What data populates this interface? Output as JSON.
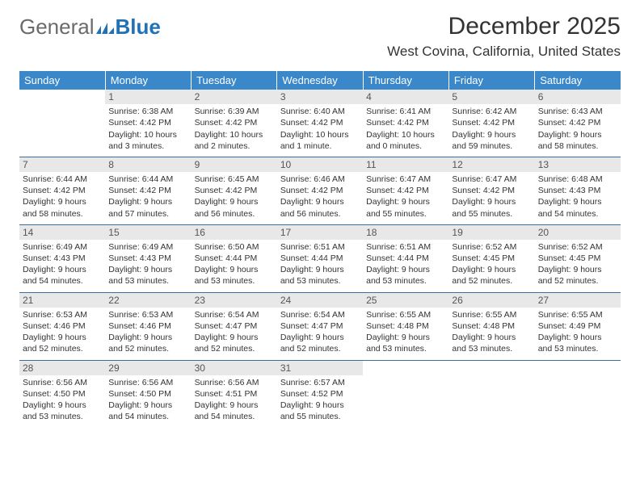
{
  "logo": {
    "part1": "General",
    "part2": "Blue"
  },
  "header": {
    "title": "December 2025",
    "location": "West Covina, California, United States"
  },
  "colors": {
    "header_bg": "#3a87c9",
    "header_text": "#ffffff",
    "row_border": "#3a6f9c",
    "daynum_bg": "#e8e8e8",
    "text": "#333333",
    "logo_gray": "#6a6a6a",
    "logo_blue": "#2071b5"
  },
  "days_of_week": [
    "Sunday",
    "Monday",
    "Tuesday",
    "Wednesday",
    "Thursday",
    "Friday",
    "Saturday"
  ],
  "weeks": [
    [
      null,
      {
        "n": "1",
        "sr": "Sunrise: 6:38 AM",
        "ss": "Sunset: 4:42 PM",
        "dl1": "Daylight: 10 hours",
        "dl2": "and 3 minutes."
      },
      {
        "n": "2",
        "sr": "Sunrise: 6:39 AM",
        "ss": "Sunset: 4:42 PM",
        "dl1": "Daylight: 10 hours",
        "dl2": "and 2 minutes."
      },
      {
        "n": "3",
        "sr": "Sunrise: 6:40 AM",
        "ss": "Sunset: 4:42 PM",
        "dl1": "Daylight: 10 hours",
        "dl2": "and 1 minute."
      },
      {
        "n": "4",
        "sr": "Sunrise: 6:41 AM",
        "ss": "Sunset: 4:42 PM",
        "dl1": "Daylight: 10 hours",
        "dl2": "and 0 minutes."
      },
      {
        "n": "5",
        "sr": "Sunrise: 6:42 AM",
        "ss": "Sunset: 4:42 PM",
        "dl1": "Daylight: 9 hours",
        "dl2": "and 59 minutes."
      },
      {
        "n": "6",
        "sr": "Sunrise: 6:43 AM",
        "ss": "Sunset: 4:42 PM",
        "dl1": "Daylight: 9 hours",
        "dl2": "and 58 minutes."
      }
    ],
    [
      {
        "n": "7",
        "sr": "Sunrise: 6:44 AM",
        "ss": "Sunset: 4:42 PM",
        "dl1": "Daylight: 9 hours",
        "dl2": "and 58 minutes."
      },
      {
        "n": "8",
        "sr": "Sunrise: 6:44 AM",
        "ss": "Sunset: 4:42 PM",
        "dl1": "Daylight: 9 hours",
        "dl2": "and 57 minutes."
      },
      {
        "n": "9",
        "sr": "Sunrise: 6:45 AM",
        "ss": "Sunset: 4:42 PM",
        "dl1": "Daylight: 9 hours",
        "dl2": "and 56 minutes."
      },
      {
        "n": "10",
        "sr": "Sunrise: 6:46 AM",
        "ss": "Sunset: 4:42 PM",
        "dl1": "Daylight: 9 hours",
        "dl2": "and 56 minutes."
      },
      {
        "n": "11",
        "sr": "Sunrise: 6:47 AM",
        "ss": "Sunset: 4:42 PM",
        "dl1": "Daylight: 9 hours",
        "dl2": "and 55 minutes."
      },
      {
        "n": "12",
        "sr": "Sunrise: 6:47 AM",
        "ss": "Sunset: 4:42 PM",
        "dl1": "Daylight: 9 hours",
        "dl2": "and 55 minutes."
      },
      {
        "n": "13",
        "sr": "Sunrise: 6:48 AM",
        "ss": "Sunset: 4:43 PM",
        "dl1": "Daylight: 9 hours",
        "dl2": "and 54 minutes."
      }
    ],
    [
      {
        "n": "14",
        "sr": "Sunrise: 6:49 AM",
        "ss": "Sunset: 4:43 PM",
        "dl1": "Daylight: 9 hours",
        "dl2": "and 54 minutes."
      },
      {
        "n": "15",
        "sr": "Sunrise: 6:49 AM",
        "ss": "Sunset: 4:43 PM",
        "dl1": "Daylight: 9 hours",
        "dl2": "and 53 minutes."
      },
      {
        "n": "16",
        "sr": "Sunrise: 6:50 AM",
        "ss": "Sunset: 4:44 PM",
        "dl1": "Daylight: 9 hours",
        "dl2": "and 53 minutes."
      },
      {
        "n": "17",
        "sr": "Sunrise: 6:51 AM",
        "ss": "Sunset: 4:44 PM",
        "dl1": "Daylight: 9 hours",
        "dl2": "and 53 minutes."
      },
      {
        "n": "18",
        "sr": "Sunrise: 6:51 AM",
        "ss": "Sunset: 4:44 PM",
        "dl1": "Daylight: 9 hours",
        "dl2": "and 53 minutes."
      },
      {
        "n": "19",
        "sr": "Sunrise: 6:52 AM",
        "ss": "Sunset: 4:45 PM",
        "dl1": "Daylight: 9 hours",
        "dl2": "and 52 minutes."
      },
      {
        "n": "20",
        "sr": "Sunrise: 6:52 AM",
        "ss": "Sunset: 4:45 PM",
        "dl1": "Daylight: 9 hours",
        "dl2": "and 52 minutes."
      }
    ],
    [
      {
        "n": "21",
        "sr": "Sunrise: 6:53 AM",
        "ss": "Sunset: 4:46 PM",
        "dl1": "Daylight: 9 hours",
        "dl2": "and 52 minutes."
      },
      {
        "n": "22",
        "sr": "Sunrise: 6:53 AM",
        "ss": "Sunset: 4:46 PM",
        "dl1": "Daylight: 9 hours",
        "dl2": "and 52 minutes."
      },
      {
        "n": "23",
        "sr": "Sunrise: 6:54 AM",
        "ss": "Sunset: 4:47 PM",
        "dl1": "Daylight: 9 hours",
        "dl2": "and 52 minutes."
      },
      {
        "n": "24",
        "sr": "Sunrise: 6:54 AM",
        "ss": "Sunset: 4:47 PM",
        "dl1": "Daylight: 9 hours",
        "dl2": "and 52 minutes."
      },
      {
        "n": "25",
        "sr": "Sunrise: 6:55 AM",
        "ss": "Sunset: 4:48 PM",
        "dl1": "Daylight: 9 hours",
        "dl2": "and 53 minutes."
      },
      {
        "n": "26",
        "sr": "Sunrise: 6:55 AM",
        "ss": "Sunset: 4:48 PM",
        "dl1": "Daylight: 9 hours",
        "dl2": "and 53 minutes."
      },
      {
        "n": "27",
        "sr": "Sunrise: 6:55 AM",
        "ss": "Sunset: 4:49 PM",
        "dl1": "Daylight: 9 hours",
        "dl2": "and 53 minutes."
      }
    ],
    [
      {
        "n": "28",
        "sr": "Sunrise: 6:56 AM",
        "ss": "Sunset: 4:50 PM",
        "dl1": "Daylight: 9 hours",
        "dl2": "and 53 minutes."
      },
      {
        "n": "29",
        "sr": "Sunrise: 6:56 AM",
        "ss": "Sunset: 4:50 PM",
        "dl1": "Daylight: 9 hours",
        "dl2": "and 54 minutes."
      },
      {
        "n": "30",
        "sr": "Sunrise: 6:56 AM",
        "ss": "Sunset: 4:51 PM",
        "dl1": "Daylight: 9 hours",
        "dl2": "and 54 minutes."
      },
      {
        "n": "31",
        "sr": "Sunrise: 6:57 AM",
        "ss": "Sunset: 4:52 PM",
        "dl1": "Daylight: 9 hours",
        "dl2": "and 55 minutes."
      },
      null,
      null,
      null
    ]
  ]
}
